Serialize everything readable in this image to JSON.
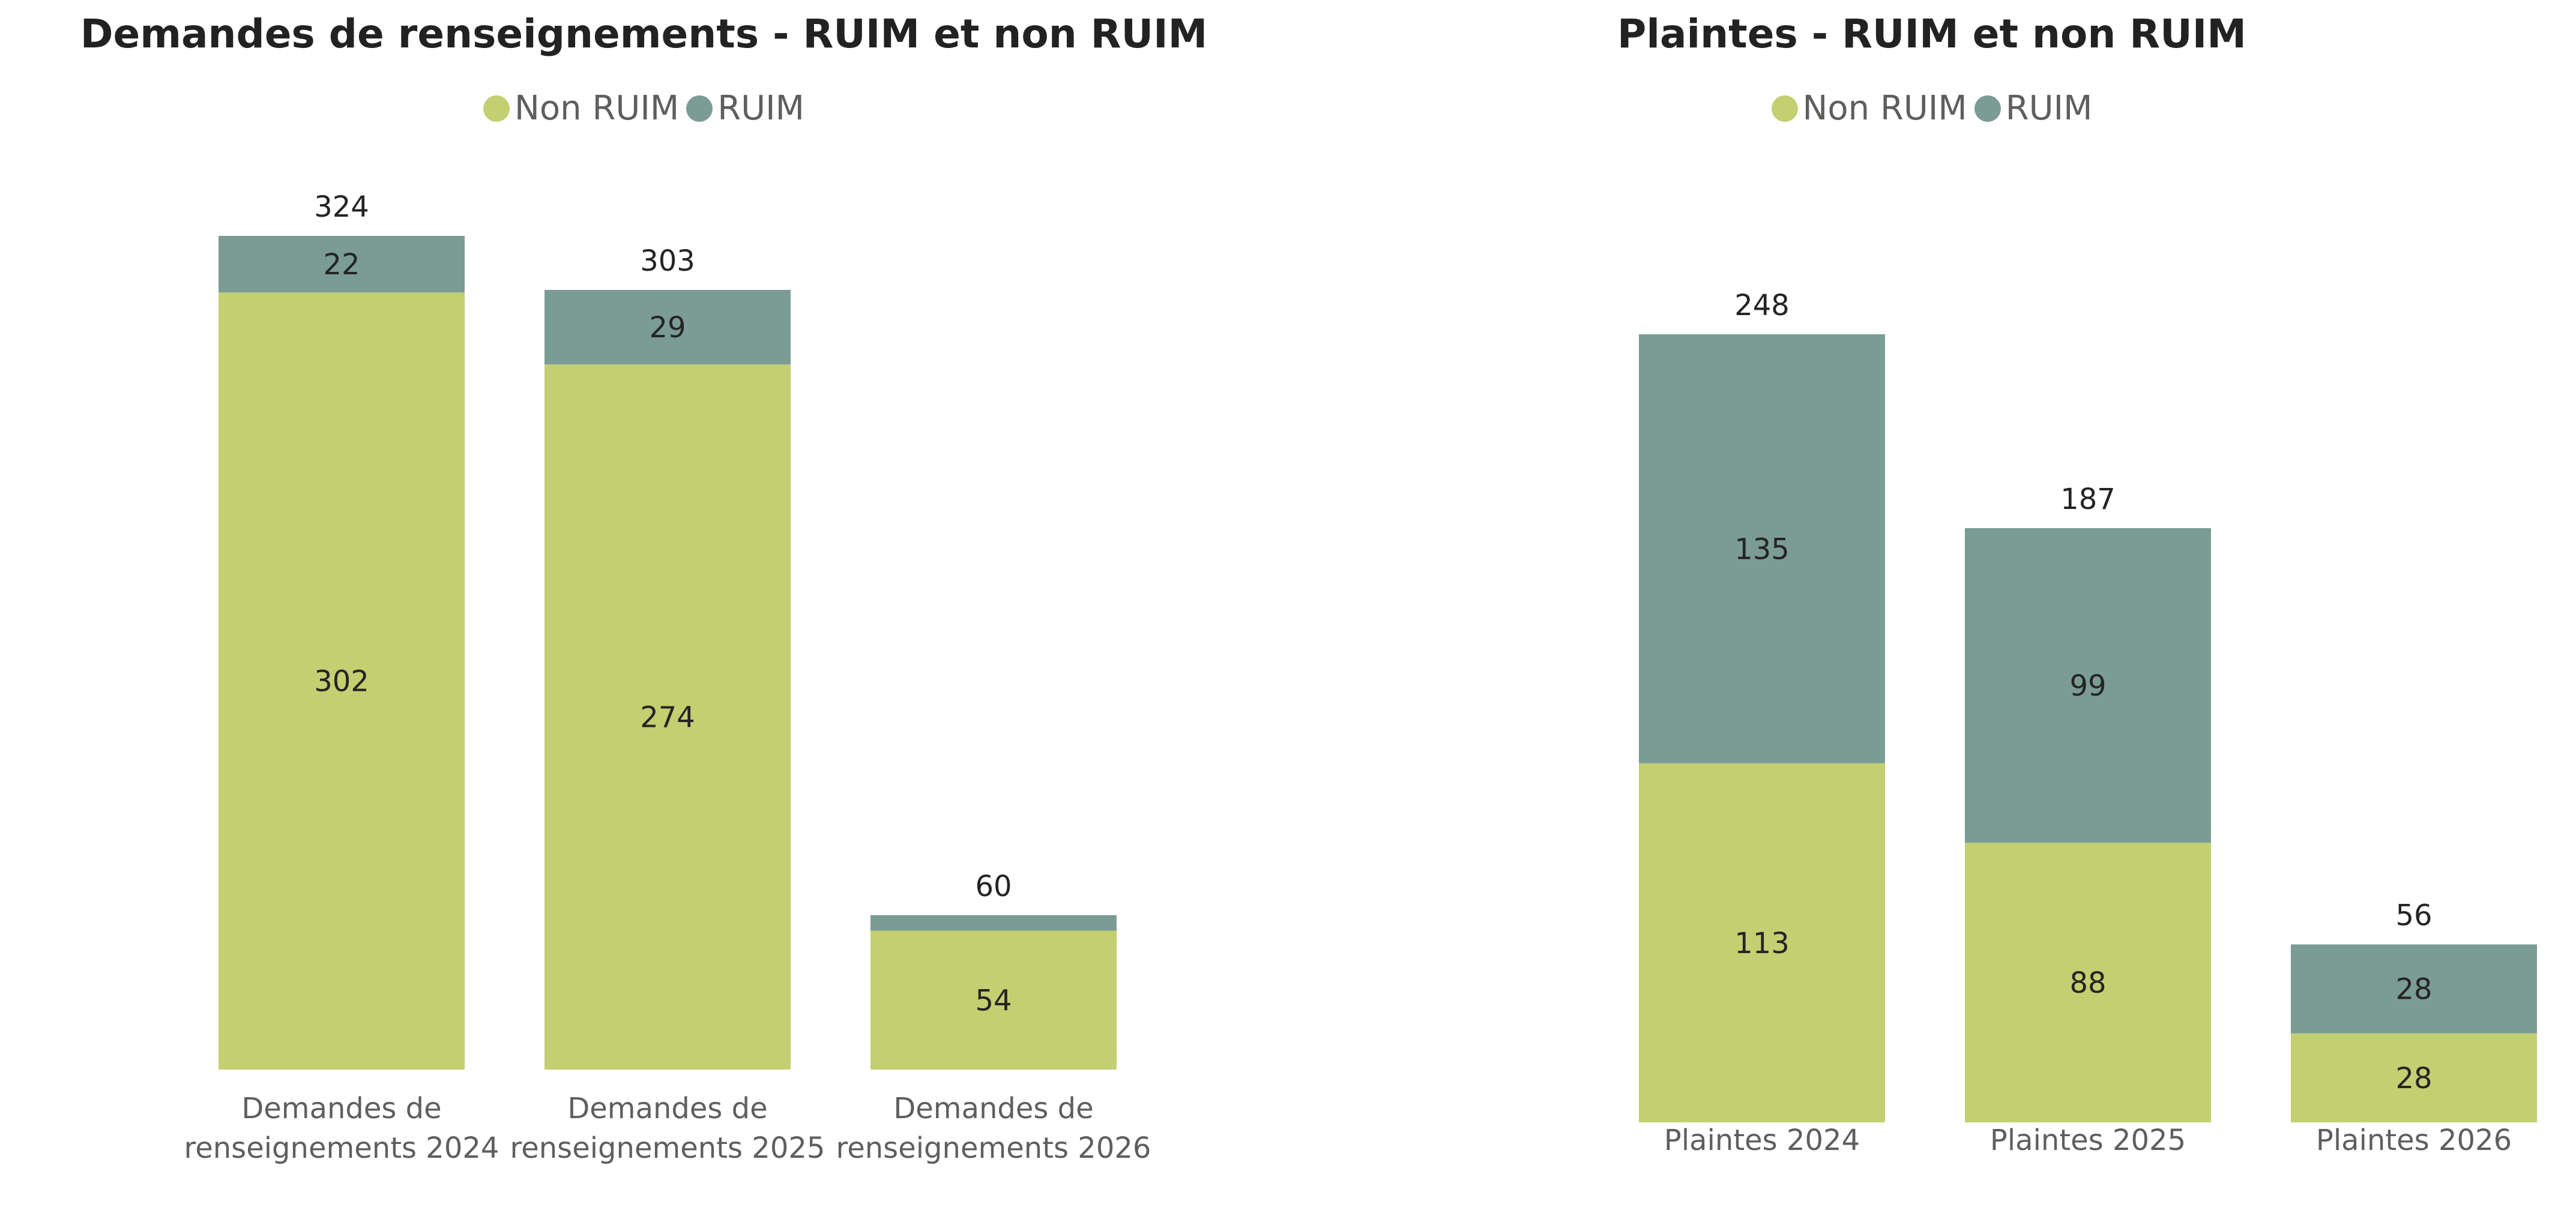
{
  "colors": {
    "non_ruim": "#c4cf72",
    "ruim": "#7a9c95"
  },
  "chart_data": [
    {
      "type": "bar",
      "stacked": true,
      "title": "Demandes de renseignements - RUIM et non RUIM",
      "legend": [
        "Non RUIM",
        "RUIM"
      ],
      "legend_position": "top-center",
      "categories": [
        [
          "Demandes de",
          "renseignements 2024"
        ],
        [
          "Demandes de",
          "renseignements 2025"
        ],
        [
          "Demandes de",
          "renseignements 2026"
        ]
      ],
      "series": [
        {
          "name": "Non RUIM",
          "values": [
            302,
            274,
            54
          ]
        },
        {
          "name": "RUIM",
          "values": [
            22,
            29,
            6
          ]
        }
      ],
      "segment_labels": [
        [
          "302",
          "274",
          "54"
        ],
        [
          "22",
          "29",
          ""
        ]
      ],
      "totals": [
        324,
        303,
        60
      ],
      "ylim": [
        0,
        324
      ],
      "grid": false
    },
    {
      "type": "bar",
      "stacked": true,
      "title": "Plaintes - RUIM et non RUIM",
      "legend": [
        "Non RUIM",
        "RUIM"
      ],
      "legend_position": "top-center",
      "categories": [
        [
          "Plaintes 2024"
        ],
        [
          "Plaintes 2025"
        ],
        [
          "Plaintes 2026"
        ]
      ],
      "series": [
        {
          "name": "Non RUIM",
          "values": [
            113,
            88,
            28
          ]
        },
        {
          "name": "RUIM",
          "values": [
            135,
            99,
            28
          ]
        }
      ],
      "segment_labels": [
        [
          "113",
          "88",
          "28"
        ],
        [
          "135",
          "99",
          "28"
        ]
      ],
      "totals": [
        248,
        187,
        56
      ],
      "ylim": [
        0,
        248
      ],
      "grid": false
    }
  ]
}
